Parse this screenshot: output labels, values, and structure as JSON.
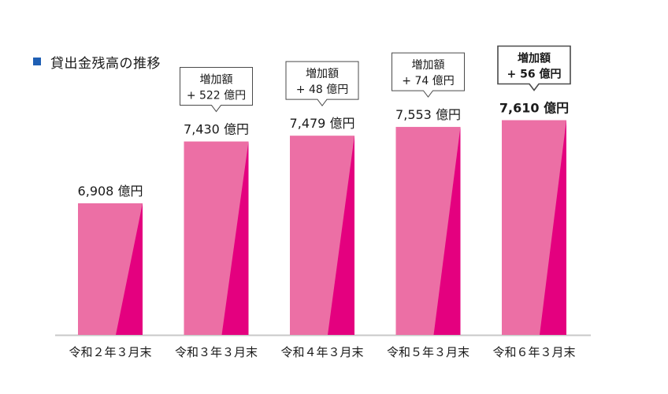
{
  "chart_data": {
    "type": "bar",
    "title": "貸出金残高の推移",
    "categories": [
      "令和２年３月末",
      "令和３年３月末",
      "令和４年３月末",
      "令和５年３月末",
      "令和６年３月末"
    ],
    "values": [
      6908,
      7430,
      7479,
      7553,
      7610
    ],
    "value_labels": [
      "6,908 億円",
      "7,430 億円",
      "7,479 億円",
      "7,553 億円",
      "7,610 億円"
    ],
    "callouts": [
      null,
      {
        "line1": "増加額",
        "line2": "+ 522 億円"
      },
      {
        "line1": "増加額",
        "line2": "+ 48 億円"
      },
      {
        "line1": "増加額",
        "line2": "+ 74 億円"
      },
      {
        "line1": "増加額",
        "line2": "+ 56 億円"
      }
    ],
    "highlight_index": 4,
    "colors": {
      "bar_light": "#ec6fa5",
      "bar_dark": "#e4007f",
      "title_marker": "#1f5fb4",
      "axis": "#c8c8c8"
    }
  }
}
